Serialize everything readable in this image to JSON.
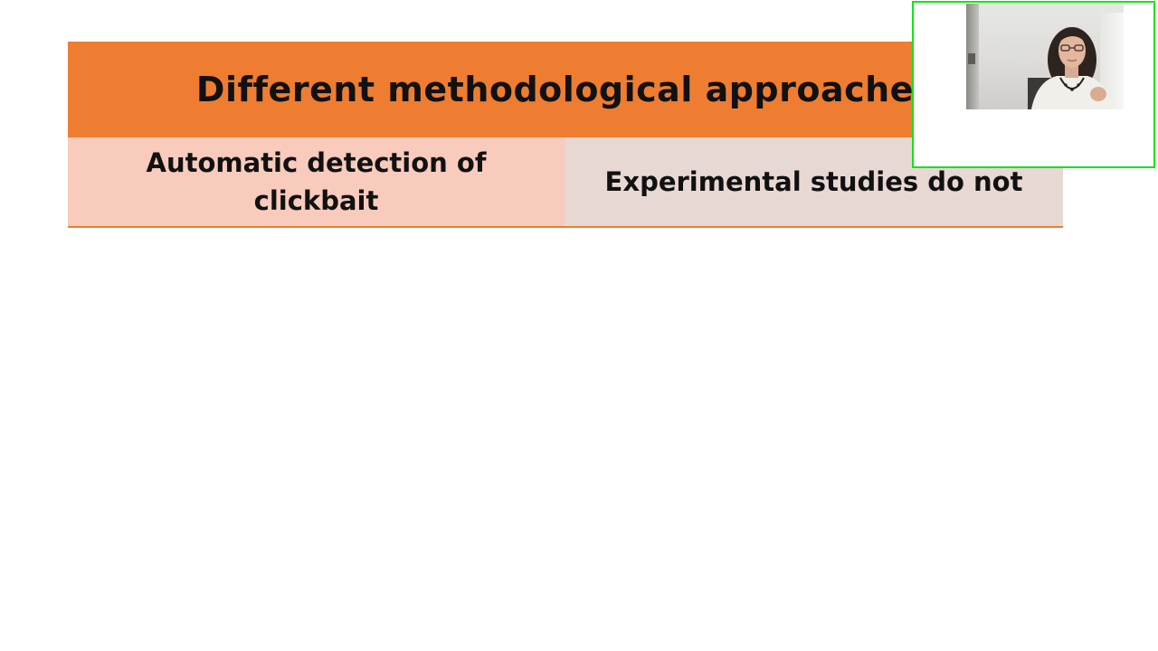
{
  "slide": {
    "title": "Different methodological approaches",
    "left_cell": "Automatic detection of clickbait",
    "right_cell": "Experimental studies do not"
  },
  "colors": {
    "title_bar": "#ef7d31",
    "left_cell": "#f8cbbd",
    "right_cell": "#e7d8d3",
    "webcam_border": "#12e41a"
  },
  "webcam": {
    "icon": "presenter-video-icon"
  }
}
